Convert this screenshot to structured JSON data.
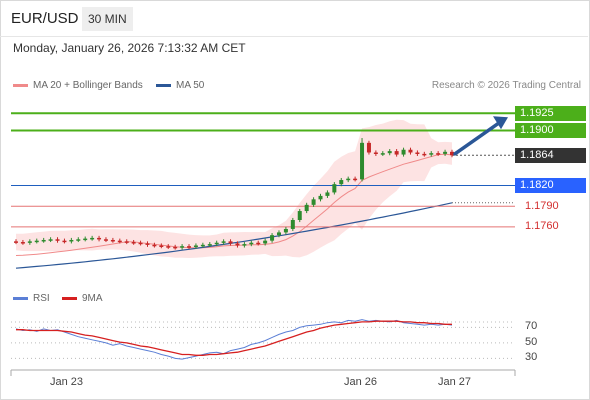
{
  "header": {
    "pair": "EUR/USD",
    "timeframe": "30 MIN",
    "datetime": "Monday, January 26, 2026 7:13:32 AM CET"
  },
  "legend": {
    "bollinger": {
      "label": "MA 20 + Bollinger Bands",
      "color": "#f08a8a"
    },
    "ma50": {
      "label": "MA 50",
      "color": "#2b5797"
    },
    "credit": "Research © 2026 Trading Central"
  },
  "rsi_legend": {
    "rsi": {
      "label": "RSI",
      "color": "#5b7fd6"
    },
    "ma9": {
      "label": "9MA",
      "color": "#d62020"
    }
  },
  "colors": {
    "resistance": "#4caf1a",
    "support_box": "#2962ff",
    "support_line": "#1f5fbf",
    "red_level": "#d32f2f",
    "current": "#333333",
    "arrow": "#2b5797",
    "bull": "#2e8b2e",
    "bear": "#c62828"
  },
  "chart_data": [
    {
      "type": "line",
      "subtype": "candlestick-price",
      "x_ticks": [
        "Jan 23",
        "Jan 26",
        "Jan 27"
      ],
      "ylim": [
        1.168,
        1.195
      ],
      "levels": [
        {
          "value": 1.1925,
          "label": "1.1925",
          "kind": "resistance"
        },
        {
          "value": 1.19,
          "label": "1.1900",
          "kind": "resistance"
        },
        {
          "value": 1.1864,
          "label": "1.1864",
          "kind": "current"
        },
        {
          "value": 1.182,
          "label": "1.1820",
          "kind": "support"
        },
        {
          "value": 1.179,
          "label": "1.1790",
          "kind": "red"
        },
        {
          "value": 1.176,
          "label": "1.1760",
          "kind": "red"
        }
      ],
      "close": [
        1.1738,
        1.1737,
        1.1739,
        1.174,
        1.1741,
        1.1742,
        1.174,
        1.1739,
        1.1741,
        1.1742,
        1.1743,
        1.1744,
        1.1742,
        1.1741,
        1.174,
        1.1739,
        1.1738,
        1.1737,
        1.1736,
        1.1734,
        1.1733,
        1.1732,
        1.1731,
        1.173,
        1.1732,
        1.1731,
        1.1733,
        1.1734,
        1.1735,
        1.1737,
        1.1739,
        1.1736,
        1.1733,
        1.1735,
        1.1737,
        1.1736,
        1.174,
        1.1748,
        1.1752,
        1.1757,
        1.177,
        1.1783,
        1.1792,
        1.18,
        1.1805,
        1.181,
        1.1822,
        1.1828,
        1.183,
        1.1829,
        1.1882,
        1.1868,
        1.1866,
        1.1867,
        1.187,
        1.1865,
        1.1872,
        1.1868,
        1.1866,
        1.1865,
        1.1867,
        1.1866,
        1.1869,
        1.1864
      ],
      "ma20": {
        "start": 1.1715,
        "end": 1.1848
      },
      "ma50": {
        "start": 1.17,
        "end": 1.1795
      },
      "arrow": {
        "from": 1.1866,
        "to": 1.1925
      }
    },
    {
      "type": "line",
      "subtype": "rsi",
      "ylim": [
        15,
        95
      ],
      "y_ticks": [
        70,
        50,
        30
      ],
      "series": [
        {
          "name": "RSI",
          "values": [
            68,
            66,
            67,
            65,
            68,
            66,
            67,
            64,
            61,
            58,
            56,
            54,
            52,
            50,
            47,
            49,
            46,
            44,
            42,
            40,
            38,
            35,
            33,
            30,
            29,
            31,
            33,
            35,
            37,
            38,
            36,
            40,
            42,
            44,
            48,
            50,
            53,
            57,
            61,
            64,
            66,
            70,
            72,
            73,
            74,
            76,
            77,
            76,
            79,
            78,
            80,
            78,
            79,
            78,
            77,
            79,
            76,
            75,
            74,
            73,
            74,
            73,
            74,
            73
          ]
        },
        {
          "name": "9MA",
          "values": [
            67,
            67,
            66,
            66,
            66,
            66,
            66,
            65,
            64,
            62,
            60,
            59,
            57,
            55,
            53,
            51,
            50,
            48,
            46,
            45,
            43,
            41,
            39,
            37,
            35,
            35,
            34,
            34,
            35,
            35,
            36,
            37,
            38,
            40,
            42,
            44,
            46,
            49,
            52,
            55,
            58,
            61,
            64,
            66,
            69,
            71,
            73,
            74,
            75,
            76,
            77,
            77,
            78,
            78,
            78,
            78,
            77,
            77,
            76,
            76,
            75,
            75,
            74,
            74
          ]
        }
      ]
    }
  ]
}
